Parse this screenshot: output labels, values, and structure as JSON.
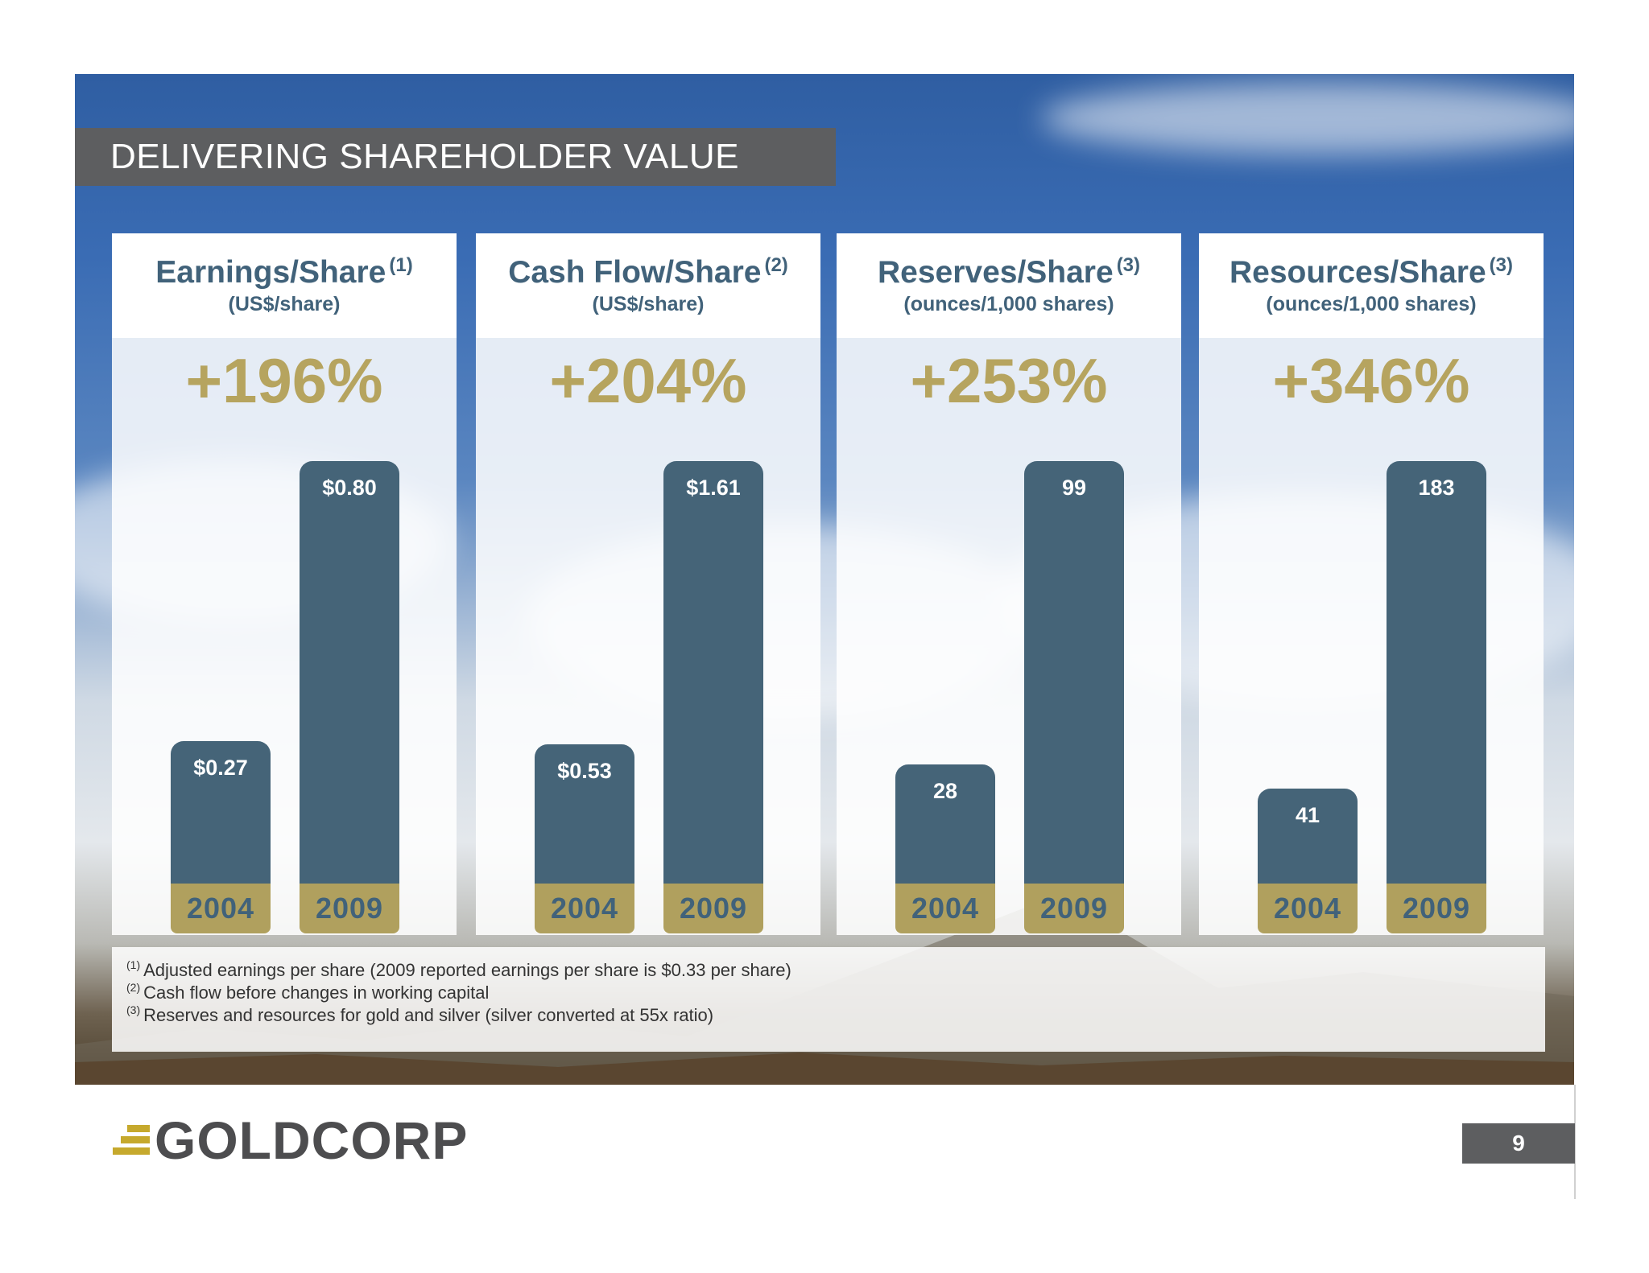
{
  "slide": {
    "title": "DELIVERING SHAREHOLDER VALUE",
    "page_number": "9",
    "logo_text": "GOLDCORP"
  },
  "chart_data": [
    {
      "type": "bar",
      "title": "Earnings/Share",
      "footnote_ref": "(1)",
      "unit_label": "(US$/share)",
      "growth_label": "+196%",
      "categories": [
        "2004",
        "2009"
      ],
      "values": [
        0.27,
        0.8
      ],
      "data_labels": [
        "$0.27",
        "$0.80"
      ]
    },
    {
      "type": "bar",
      "title": "Cash Flow/Share",
      "footnote_ref": "(2)",
      "unit_label": "(US$/share)",
      "growth_label": "+204%",
      "categories": [
        "2004",
        "2009"
      ],
      "values": [
        0.53,
        1.61
      ],
      "data_labels": [
        "$0.53",
        "$1.61"
      ]
    },
    {
      "type": "bar",
      "title": "Reserves/Share",
      "footnote_ref": "(3)",
      "unit_label": "(ounces/1,000 shares)",
      "growth_label": "+253%",
      "categories": [
        "2004",
        "2009"
      ],
      "values": [
        28,
        99
      ],
      "data_labels": [
        "28",
        "99"
      ]
    },
    {
      "type": "bar",
      "title": "Resources/Share",
      "footnote_ref": "(3)",
      "unit_label": "(ounces/1,000 shares)",
      "growth_label": "+346%",
      "categories": [
        "2004",
        "2009"
      ],
      "values": [
        41,
        183
      ],
      "data_labels": [
        "41",
        "183"
      ]
    }
  ],
  "footnotes": [
    {
      "ref": "(1)",
      "text": "Adjusted earnings per share (2009 reported earnings per share is $0.33 per share)"
    },
    {
      "ref": "(2)",
      "text": "Cash flow before changes in working capital"
    },
    {
      "ref": "(3)",
      "text": "Reserves and resources for gold and silver (silver converted at 55x ratio)"
    }
  ],
  "colors": {
    "bar": "#456478",
    "year_band": "#b0a05e",
    "growth_text": "#b6a45f",
    "title_bar": "#5d5e60",
    "logo_gold": "#c6a92d"
  }
}
